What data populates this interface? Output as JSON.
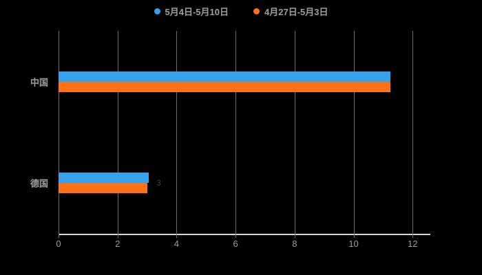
{
  "chart_data": {
    "type": "bar",
    "orientation": "horizontal",
    "title": "",
    "categories": [
      "中国",
      "德国"
    ],
    "series": [
      {
        "name": "5月4日-5月10日",
        "color": "#36a2eb",
        "values": [
          11.25,
          3.05
        ]
      },
      {
        "name": "4月27日-5月3日",
        "color": "#ff7217",
        "values": [
          11.25,
          3.0
        ]
      }
    ],
    "xticks": [
      0,
      2,
      4,
      6,
      8,
      10,
      12
    ],
    "xlim": [
      0,
      12.6
    ],
    "xlabel": "",
    "ylabel": "",
    "grid": "vertical",
    "legend_position": "top",
    "annotations": [
      {
        "text": "3",
        "x": 3.2,
        "category_index": 1
      }
    ]
  },
  "colors": {
    "background": "#000000",
    "axis_line": "#d9d9d9",
    "gridline": "#6e6e6e",
    "label_text": "#9e9e9e"
  }
}
